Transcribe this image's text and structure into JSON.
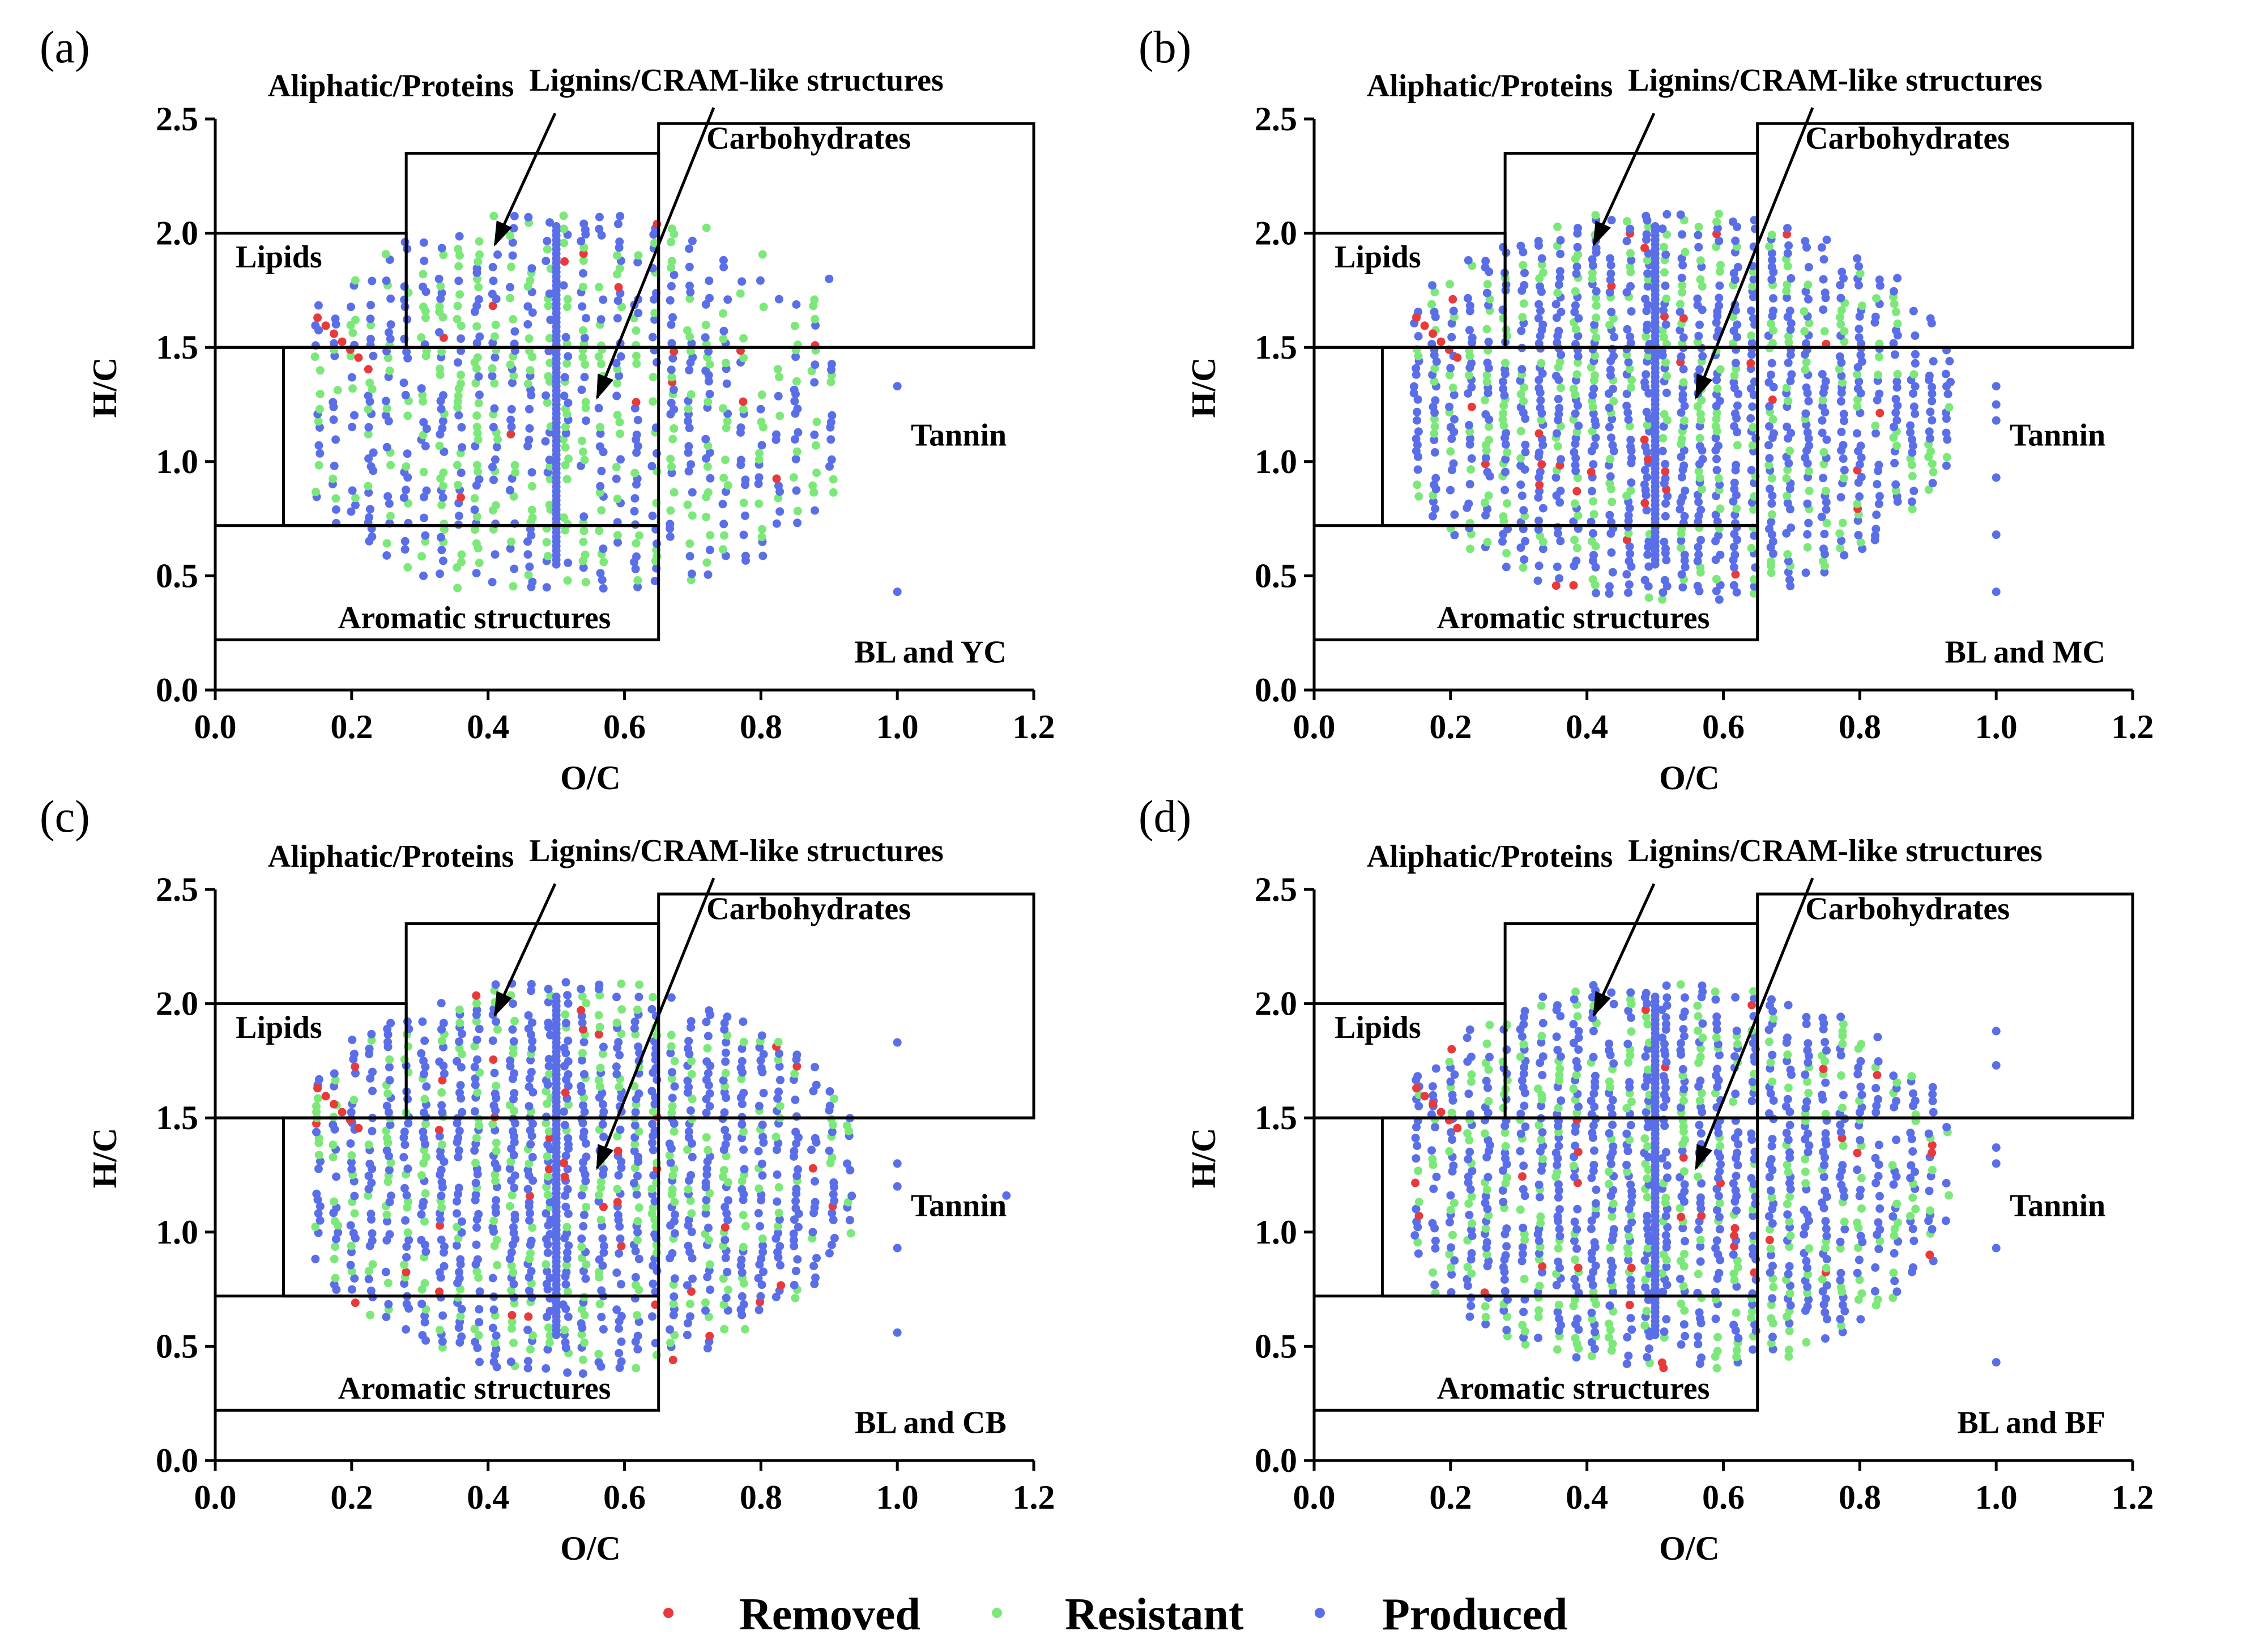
{
  "colors": {
    "removed": "#e83a3a",
    "resistant": "#7de87a",
    "produced": "#5a6ee8"
  },
  "legend": [
    {
      "name": "Removed",
      "color": "#e83a3a"
    },
    {
      "name": "Resistant",
      "color": "#7de87a"
    },
    {
      "name": "Produced",
      "color": "#5a6ee8"
    }
  ],
  "shared_labels": {
    "lipids": "Lipids",
    "aliphatic": "Aliphatic/Proteins",
    "lignins": "Lignins/CRAM-like structures",
    "carbohydrates": "Carbohydrates",
    "tannin": "Tannin",
    "aromatic": "Aromatic structures"
  },
  "chart_data": [
    {
      "type": "scatter",
      "panel": "(a)",
      "sample": "BL and YC",
      "xlabel": "O/C",
      "ylabel": "H/C",
      "xlim": [
        0,
        1.2
      ],
      "ylim": [
        0,
        2.5
      ],
      "xticks": [
        "0.0",
        "0.2",
        "0.4",
        "0.6",
        "0.8",
        "1.0",
        "1.2"
      ],
      "yticks": [
        "0.0",
        "0.5",
        "1.0",
        "1.5",
        "2.0",
        "2.5"
      ],
      "region_boxes": {
        "lipids": [
          0,
          0.28,
          1.5,
          2.0
        ],
        "aliphatic_proteins": [
          0.28,
          0.65,
          1.5,
          2.35
        ],
        "lignins_cram": [
          0.1,
          0.65,
          0.72,
          1.5
        ],
        "carbohydrates": [
          0.65,
          1.2,
          1.5,
          2.48
        ],
        "aromatic": [
          0,
          0.65,
          0.22,
          0.72
        ]
      },
      "point_cloud": {
        "xmin": 0.15,
        "xmax": 0.92,
        "ymin": 0.45,
        "ymax": 2.1,
        "density": 0.55,
        "removed_frac": 0.03,
        "resistant_frac": 0.42
      },
      "outliers": [
        [
          1.0,
          1.33
        ],
        [
          1.0,
          0.43
        ],
        [
          0.9,
          1.8
        ]
      ]
    },
    {
      "type": "scatter",
      "panel": "(b)",
      "sample": "BL and MC",
      "xlabel": "O/C",
      "ylabel": "H/C",
      "xlim": [
        0,
        1.2
      ],
      "ylim": [
        0,
        2.5
      ],
      "xticks": [
        "0.0",
        "0.2",
        "0.4",
        "0.6",
        "0.8",
        "1.0",
        "1.2"
      ],
      "yticks": [
        "0.0",
        "0.5",
        "1.0",
        "1.5",
        "2.0",
        "2.5"
      ],
      "region_boxes": {
        "lipids": [
          0,
          0.28,
          1.5,
          2.0
        ],
        "aliphatic_proteins": [
          0.28,
          0.65,
          1.5,
          2.35
        ],
        "lignins_cram": [
          0.1,
          0.65,
          0.72,
          1.5
        ],
        "carbohydrates": [
          0.65,
          1.2,
          1.5,
          2.48
        ],
        "aromatic": [
          0,
          0.65,
          0.22,
          0.72
        ]
      },
      "point_cloud": {
        "xmin": 0.15,
        "xmax": 0.93,
        "ymin": 0.4,
        "ymax": 2.1,
        "density": 0.8,
        "removed_frac": 0.02,
        "resistant_frac": 0.28
      },
      "outliers": [
        [
          1.0,
          1.33
        ],
        [
          1.0,
          1.25
        ],
        [
          1.0,
          1.18
        ],
        [
          1.0,
          0.93
        ],
        [
          1.0,
          0.68
        ],
        [
          1.0,
          0.43
        ]
      ]
    },
    {
      "type": "scatter",
      "panel": "(c)",
      "sample": "BL and CB",
      "xlabel": "O/C",
      "ylabel": "H/C",
      "xlim": [
        0,
        1.2
      ],
      "ylim": [
        0,
        2.5
      ],
      "xticks": [
        "0.0",
        "0.2",
        "0.4",
        "0.6",
        "0.8",
        "1.0",
        "1.2"
      ],
      "yticks": [
        "0.0",
        "0.5",
        "1.0",
        "1.5",
        "2.0",
        "2.5"
      ],
      "region_boxes": {
        "lipids": [
          0,
          0.28,
          1.5,
          2.0
        ],
        "aliphatic_proteins": [
          0.28,
          0.65,
          1.5,
          2.35
        ],
        "lignins_cram": [
          0.1,
          0.65,
          0.72,
          1.5
        ],
        "carbohydrates": [
          0.65,
          1.2,
          1.5,
          2.48
        ],
        "aromatic": [
          0,
          0.65,
          0.22,
          0.72
        ]
      },
      "point_cloud": {
        "xmin": 0.15,
        "xmax": 0.95,
        "ymin": 0.38,
        "ymax": 2.1,
        "density": 0.82,
        "removed_frac": 0.03,
        "resistant_frac": 0.3
      },
      "outliers": [
        [
          1.0,
          1.83
        ],
        [
          1.0,
          1.3
        ],
        [
          1.0,
          1.2
        ],
        [
          1.0,
          0.93
        ],
        [
          1.0,
          0.56
        ],
        [
          1.16,
          1.16
        ]
      ]
    },
    {
      "type": "scatter",
      "panel": "(d)",
      "sample": "BL and BF",
      "xlabel": "O/C",
      "ylabel": "H/C",
      "xlim": [
        0,
        1.2
      ],
      "ylim": [
        0,
        2.5
      ],
      "xticks": [
        "0.0",
        "0.2",
        "0.4",
        "0.6",
        "0.8",
        "1.0",
        "1.2"
      ],
      "yticks": [
        "0.0",
        "0.5",
        "1.0",
        "1.5",
        "2.0",
        "2.5"
      ],
      "region_boxes": {
        "lipids": [
          0,
          0.28,
          1.5,
          2.0
        ],
        "aliphatic_proteins": [
          0.28,
          0.65,
          1.5,
          2.35
        ],
        "lignins_cram": [
          0.1,
          0.65,
          0.72,
          1.5
        ],
        "carbohydrates": [
          0.65,
          1.2,
          1.5,
          2.48
        ],
        "aromatic": [
          0,
          0.65,
          0.22,
          0.72
        ]
      },
      "point_cloud": {
        "xmin": 0.15,
        "xmax": 0.93,
        "ymin": 0.4,
        "ymax": 2.1,
        "density": 0.8,
        "removed_frac": 0.04,
        "resistant_frac": 0.3
      },
      "outliers": [
        [
          1.0,
          1.88
        ],
        [
          1.0,
          1.73
        ],
        [
          1.0,
          1.37
        ],
        [
          1.0,
          1.3
        ],
        [
          1.0,
          0.93
        ],
        [
          1.0,
          0.43
        ]
      ]
    }
  ]
}
